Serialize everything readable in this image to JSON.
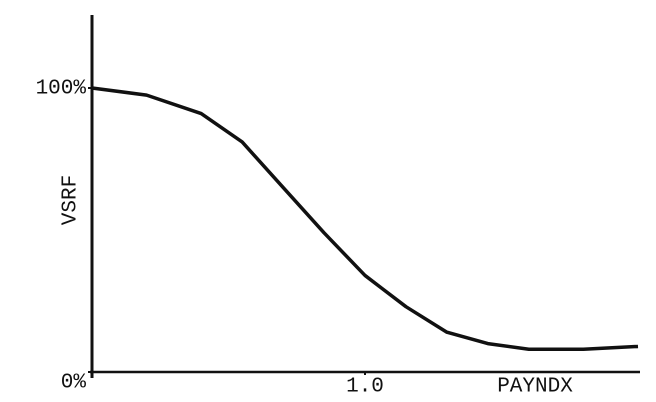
{
  "chart_data": {
    "type": "line",
    "x_label": "PAYNDX",
    "y_label": "VSRF",
    "x": [
      0,
      0.2,
      0.4,
      0.55,
      0.7,
      0.85,
      1.0,
      1.15,
      1.3,
      1.45,
      1.6,
      1.8,
      2.0
    ],
    "series": [
      {
        "color": "#111111",
        "values": [
          100,
          97.5,
          91,
          81,
          65,
          49,
          34,
          23,
          14,
          10,
          8,
          8,
          9
        ]
      }
    ],
    "xlim": [
      0,
      2.0
    ],
    "ylim": [
      0,
      125
    ],
    "xticks": [
      {
        "value": 1,
        "label": "1.0"
      }
    ],
    "yticks": [
      {
        "value": 0,
        "label": "0%"
      },
      {
        "value": 100,
        "label": "100%"
      }
    ]
  }
}
